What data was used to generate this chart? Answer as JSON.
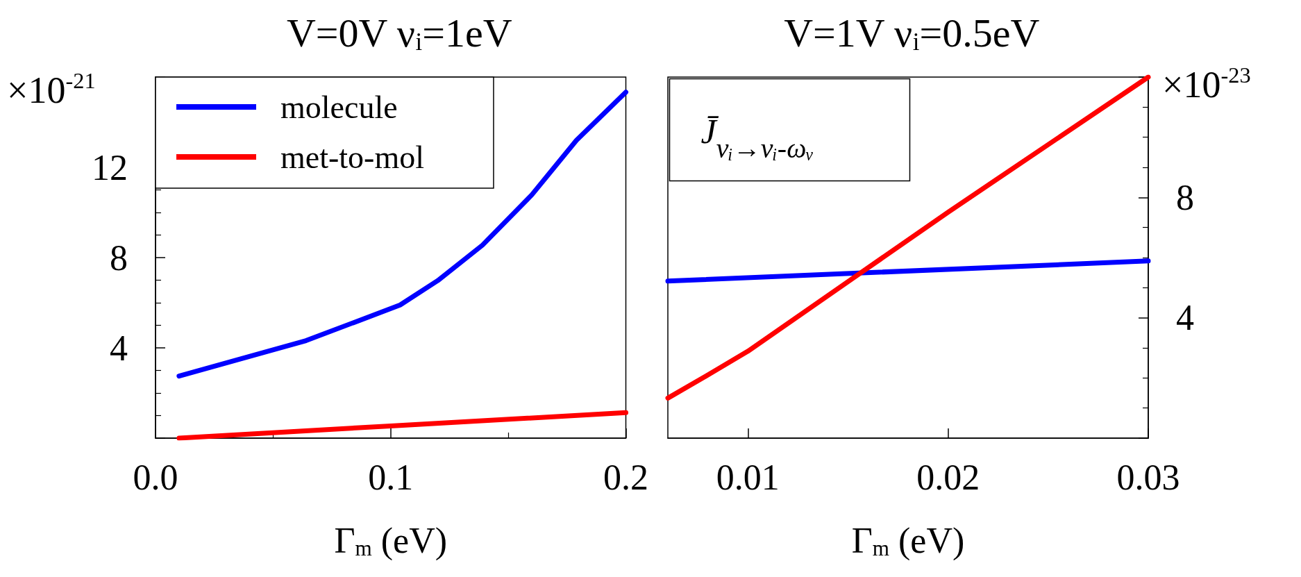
{
  "chart_data": [
    {
      "type": "line",
      "title": "V=0V ν$_{i}$=1eV",
      "xlabel": "Γ$_{m}$ (eV)",
      "annotations": [
        "×10$^{-21}$"
      ],
      "xlim": [
        0,
        0.2
      ],
      "xticks": [
        {
          "value": 0,
          "label": "0.0"
        },
        0.1,
        0.2
      ],
      "ylim": [
        0,
        16
      ],
      "yticks": [
        4,
        8,
        12
      ],
      "grid": false,
      "legend": "top left",
      "marker": "none",
      "line_style": "solid",
      "series": [
        {
          "name": "molecule",
          "color": "#0000ff",
          "x": [
            0.01,
            0.064,
            0.104,
            0.12,
            0.139,
            0.16,
            0.179,
            0.2
          ],
          "values": [
            2.75,
            4.32,
            5.9,
            6.98,
            8.55,
            10.78,
            13.2,
            15.33
          ]
        },
        {
          "name": "met-to-mol",
          "color": "#ff0000",
          "x": [
            0.01,
            0.1,
            0.2
          ],
          "values": [
            0,
            0.54,
            1.13
          ]
        }
      ]
    },
    {
      "type": "line",
      "title": "V=1V ν$_{i}$=0.5eV",
      "xlabel": "Γ$_{m}$ (eV)",
      "annotations": [
        "×10$^{-23}$",
        "J̄$_{νᵢ→νᵢ-ωᵥ}$"
      ],
      "xlim": [
        0.006,
        0.03
      ],
      "xticks": [
        0.01,
        0.02,
        0.03
      ],
      "ylim": [
        0,
        12
      ],
      "yticks": [
        4,
        8
      ],
      "grid": false,
      "legend": false,
      "marker": "none",
      "line_style": "solid",
      "series": [
        {
          "color": "#0000ff",
          "x": [
            0.006,
            0.03
          ],
          "values": [
            5.22,
            5.89
          ]
        },
        {
          "color": "#ff0000",
          "x": [
            0.006,
            0.008,
            0.01,
            0.0155,
            0.02,
            0.03
          ],
          "values": [
            1.33,
            2.1,
            2.89,
            5.43,
            7.51,
            12
          ]
        }
      ]
    }
  ]
}
